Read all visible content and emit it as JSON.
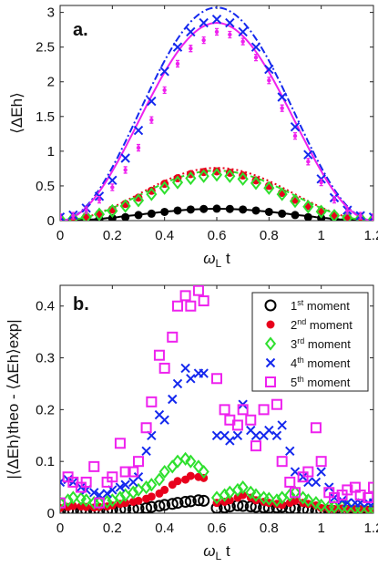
{
  "chart_data": [
    {
      "type": "scatter",
      "panel_label": "a.",
      "xlabel": "ωL t",
      "ylabel": "⟨ΔEh⟩",
      "xlim": [
        0,
        1.2
      ],
      "ylim": [
        0,
        3.1
      ],
      "xticks": [
        "0",
        "0.2",
        "0.4",
        "0.6",
        "0.8",
        "1",
        "1.2"
      ],
      "yticks": [
        "0",
        "0.5",
        "1",
        "1.5",
        "2",
        "2.5",
        "3"
      ],
      "grid": false,
      "colors": {
        "black": "#000000",
        "red": "#e8001c",
        "green": "#2ee02e",
        "blue": "#1428ee",
        "magenta": "#ee22ee"
      },
      "series": [
        {
          "color": "black",
          "marker": "circle-filled",
          "line": "solid",
          "amplitude": 0.17,
          "x": [
            0.0,
            0.05,
            0.1,
            0.15,
            0.2,
            0.25,
            0.3,
            0.35,
            0.4,
            0.45,
            0.5,
            0.55,
            0.6,
            0.65,
            0.7,
            0.75,
            0.8,
            0.85,
            0.9,
            0.95,
            1.0,
            1.05,
            1.1,
            1.15,
            1.2
          ],
          "y": [
            0.0,
            0.004,
            0.01,
            0.02,
            0.035,
            0.05,
            0.08,
            0.1,
            0.125,
            0.145,
            0.16,
            0.168,
            0.172,
            0.168,
            0.16,
            0.145,
            0.125,
            0.1,
            0.08,
            0.05,
            0.035,
            0.02,
            0.01,
            0.004,
            0.0
          ]
        },
        {
          "color": "red",
          "marker": "circle-filled",
          "line": "dotted",
          "amplitude": 0.76,
          "x": [
            0.0,
            0.05,
            0.1,
            0.15,
            0.2,
            0.25,
            0.3,
            0.35,
            0.4,
            0.45,
            0.5,
            0.55,
            0.6,
            0.65,
            0.7,
            0.75,
            0.8,
            0.85,
            0.9,
            0.95,
            1.0,
            1.05,
            1.1,
            1.15,
            1.2
          ],
          "y": [
            0.02,
            0.03,
            0.06,
            0.1,
            0.16,
            0.24,
            0.33,
            0.43,
            0.53,
            0.61,
            0.67,
            0.7,
            0.71,
            0.69,
            0.65,
            0.58,
            0.5,
            0.4,
            0.3,
            0.21,
            0.14,
            0.08,
            0.05,
            0.03,
            0.02
          ]
        },
        {
          "color": "green",
          "marker": "diamond",
          "line": "dashed",
          "amplitude": 0.72,
          "x": [
            0.0,
            0.05,
            0.1,
            0.15,
            0.2,
            0.25,
            0.3,
            0.35,
            0.4,
            0.45,
            0.5,
            0.55,
            0.6,
            0.65,
            0.7,
            0.75,
            0.8,
            0.85,
            0.9,
            0.95,
            1.0,
            1.05,
            1.1,
            1.15,
            1.2
          ],
          "y": [
            0.02,
            0.03,
            0.05,
            0.09,
            0.14,
            0.21,
            0.29,
            0.38,
            0.47,
            0.55,
            0.61,
            0.64,
            0.66,
            0.64,
            0.6,
            0.54,
            0.47,
            0.38,
            0.28,
            0.2,
            0.13,
            0.07,
            0.04,
            0.03,
            0.02
          ]
        },
        {
          "color": "blue",
          "marker": "x",
          "line": "dashdot",
          "amplitude": 3.07,
          "x": [
            0.0,
            0.05,
            0.1,
            0.15,
            0.2,
            0.25,
            0.3,
            0.35,
            0.4,
            0.45,
            0.5,
            0.55,
            0.6,
            0.65,
            0.7,
            0.75,
            0.8,
            0.85,
            0.9,
            0.95,
            1.0,
            1.05,
            1.1,
            1.15,
            1.2
          ],
          "y": [
            0.05,
            0.08,
            0.18,
            0.35,
            0.58,
            0.9,
            1.3,
            1.72,
            2.15,
            2.5,
            2.72,
            2.85,
            2.9,
            2.85,
            2.72,
            2.5,
            2.18,
            1.78,
            1.35,
            0.95,
            0.6,
            0.33,
            0.15,
            0.07,
            0.05
          ]
        },
        {
          "color": "magenta",
          "marker": "errorbar-dot",
          "line": "solid",
          "amplitude": 2.85,
          "x": [
            0.0,
            0.05,
            0.1,
            0.15,
            0.2,
            0.25,
            0.3,
            0.35,
            0.4,
            0.45,
            0.5,
            0.55,
            0.6,
            0.65,
            0.7,
            0.75,
            0.8,
            0.85,
            0.9,
            0.95,
            1.0,
            1.05,
            1.1,
            1.15,
            1.2
          ],
          "y": [
            0.05,
            0.07,
            0.15,
            0.3,
            0.48,
            0.73,
            1.05,
            1.45,
            1.88,
            2.26,
            2.48,
            2.6,
            2.72,
            2.68,
            2.58,
            2.35,
            2.02,
            1.62,
            1.22,
            0.85,
            0.55,
            0.3,
            0.14,
            0.07,
            0.05
          ]
        }
      ]
    },
    {
      "type": "scatter",
      "panel_label": "b.",
      "xlabel": "ωL t",
      "ylabel": "|⟨ΔEh⟩theo - ⟨ΔEh⟩exp|",
      "xlim": [
        0,
        1.2
      ],
      "ylim": [
        0,
        0.44
      ],
      "xticks": [
        "0",
        "0.2",
        "0.4",
        "0.6",
        "0.8",
        "1",
        "1.2"
      ],
      "yticks": [
        "0",
        "0.1",
        "0.2",
        "0.3",
        "0.4"
      ],
      "grid": false,
      "legend_position": "top-right",
      "series": [
        {
          "name": "1st moment",
          "marker": "circle-open",
          "color": "black",
          "x": [
            0.0,
            0.03,
            0.05,
            0.08,
            0.1,
            0.13,
            0.15,
            0.18,
            0.2,
            0.23,
            0.25,
            0.28,
            0.3,
            0.33,
            0.35,
            0.38,
            0.4,
            0.43,
            0.45,
            0.48,
            0.5,
            0.53,
            0.55,
            0.6,
            0.63,
            0.65,
            0.68,
            0.7,
            0.73,
            0.75,
            0.78,
            0.8,
            0.83,
            0.85,
            0.88,
            0.9,
            0.93,
            0.95,
            0.98,
            1.0,
            1.03,
            1.05,
            1.08,
            1.1,
            1.13,
            1.15,
            1.18,
            1.2
          ],
          "y": [
            0.005,
            0.005,
            0.005,
            0.005,
            0.005,
            0.006,
            0.006,
            0.006,
            0.007,
            0.007,
            0.008,
            0.008,
            0.009,
            0.01,
            0.012,
            0.014,
            0.016,
            0.018,
            0.02,
            0.022,
            0.023,
            0.025,
            0.024,
            0.01,
            0.011,
            0.013,
            0.015,
            0.014,
            0.013,
            0.012,
            0.011,
            0.01,
            0.011,
            0.012,
            0.01,
            0.009,
            0.008,
            0.006,
            0.005,
            0.005,
            0.005,
            0.004,
            0.004,
            0.004,
            0.004,
            0.004,
            0.003,
            0.003
          ]
        },
        {
          "name": "2nd moment",
          "marker": "circle-filled",
          "color": "red",
          "x": [
            0.0,
            0.03,
            0.05,
            0.08,
            0.1,
            0.13,
            0.15,
            0.18,
            0.2,
            0.23,
            0.25,
            0.28,
            0.3,
            0.33,
            0.35,
            0.38,
            0.4,
            0.43,
            0.45,
            0.48,
            0.5,
            0.53,
            0.55,
            0.6,
            0.63,
            0.65,
            0.68,
            0.7,
            0.73,
            0.75,
            0.78,
            0.8,
            0.83,
            0.85,
            0.88,
            0.9,
            0.93,
            0.95,
            0.98,
            1.0,
            1.03,
            1.05,
            1.08,
            1.1,
            1.13,
            1.15,
            1.18,
            1.2
          ],
          "y": [
            0.01,
            0.012,
            0.014,
            0.013,
            0.012,
            0.011,
            0.012,
            0.013,
            0.015,
            0.018,
            0.02,
            0.022,
            0.024,
            0.028,
            0.032,
            0.038,
            0.045,
            0.055,
            0.062,
            0.065,
            0.072,
            0.07,
            0.068,
            0.02,
            0.022,
            0.025,
            0.03,
            0.035,
            0.03,
            0.025,
            0.022,
            0.02,
            0.018,
            0.016,
            0.02,
            0.024,
            0.02,
            0.018,
            0.015,
            0.01,
            0.008,
            0.008,
            0.009,
            0.008,
            0.007,
            0.007,
            0.006,
            0.006
          ]
        },
        {
          "name": "3rd moment",
          "marker": "diamond",
          "color": "green",
          "x": [
            0.0,
            0.03,
            0.05,
            0.08,
            0.1,
            0.13,
            0.15,
            0.18,
            0.2,
            0.23,
            0.25,
            0.28,
            0.3,
            0.33,
            0.35,
            0.38,
            0.4,
            0.43,
            0.45,
            0.48,
            0.5,
            0.53,
            0.55,
            0.6,
            0.63,
            0.65,
            0.68,
            0.7,
            0.73,
            0.75,
            0.78,
            0.8,
            0.83,
            0.85,
            0.88,
            0.9,
            0.93,
            0.95,
            0.98,
            1.0,
            1.03,
            1.05,
            1.08,
            1.1,
            1.13,
            1.15,
            1.18,
            1.2
          ],
          "y": [
            0.02,
            0.025,
            0.03,
            0.028,
            0.025,
            0.02,
            0.02,
            0.022,
            0.025,
            0.03,
            0.035,
            0.04,
            0.045,
            0.05,
            0.055,
            0.065,
            0.08,
            0.09,
            0.1,
            0.105,
            0.1,
            0.09,
            0.08,
            0.03,
            0.035,
            0.04,
            0.045,
            0.05,
            0.04,
            0.035,
            0.03,
            0.028,
            0.025,
            0.03,
            0.035,
            0.04,
            0.03,
            0.025,
            0.02,
            0.015,
            0.012,
            0.012,
            0.013,
            0.012,
            0.01,
            0.01,
            0.009,
            0.009
          ]
        },
        {
          "name": "4th moment",
          "marker": "x",
          "color": "blue",
          "x": [
            0.0,
            0.03,
            0.05,
            0.08,
            0.1,
            0.13,
            0.15,
            0.18,
            0.2,
            0.23,
            0.25,
            0.28,
            0.3,
            0.33,
            0.35,
            0.38,
            0.4,
            0.43,
            0.45,
            0.48,
            0.5,
            0.53,
            0.55,
            0.6,
            0.63,
            0.65,
            0.68,
            0.7,
            0.73,
            0.75,
            0.78,
            0.8,
            0.83,
            0.85,
            0.88,
            0.9,
            0.93,
            0.95,
            0.98,
            1.0,
            1.03,
            1.05,
            1.08,
            1.1,
            1.13,
            1.15,
            1.18,
            1.2
          ],
          "y": [
            0.06,
            0.065,
            0.06,
            0.05,
            0.045,
            0.04,
            0.035,
            0.038,
            0.045,
            0.05,
            0.055,
            0.06,
            0.07,
            0.12,
            0.15,
            0.19,
            0.18,
            0.22,
            0.25,
            0.28,
            0.26,
            0.27,
            0.27,
            0.15,
            0.15,
            0.14,
            0.15,
            0.21,
            0.16,
            0.15,
            0.15,
            0.16,
            0.15,
            0.17,
            0.12,
            0.08,
            0.07,
            0.06,
            0.06,
            0.08,
            0.05,
            0.03,
            0.025,
            0.02,
            0.02,
            0.02,
            0.02,
            0.02
          ]
        },
        {
          "name": "5th moment",
          "marker": "square-open",
          "color": "magenta",
          "x": [
            0.0,
            0.03,
            0.05,
            0.08,
            0.1,
            0.13,
            0.15,
            0.18,
            0.2,
            0.23,
            0.25,
            0.28,
            0.3,
            0.33,
            0.35,
            0.38,
            0.4,
            0.43,
            0.45,
            0.48,
            0.5,
            0.53,
            0.55,
            0.6,
            0.63,
            0.65,
            0.68,
            0.7,
            0.73,
            0.75,
            0.78,
            0.8,
            0.83,
            0.85,
            0.88,
            0.9,
            0.93,
            0.95,
            0.98,
            1.0,
            1.03,
            1.05,
            1.08,
            1.1,
            1.13,
            1.15,
            1.18,
            1.2
          ],
          "y": [
            0.02,
            0.07,
            0.06,
            0.05,
            0.06,
            0.09,
            0.02,
            0.06,
            0.07,
            0.135,
            0.08,
            0.08,
            0.1,
            0.165,
            0.215,
            0.305,
            0.28,
            0.34,
            0.4,
            0.42,
            0.4,
            0.43,
            0.41,
            0.26,
            0.2,
            0.18,
            0.17,
            0.2,
            0.18,
            0.13,
            0.2,
            0.25,
            0.21,
            0.1,
            0.06,
            0.04,
            0.07,
            0.08,
            0.165,
            0.1,
            0.04,
            0.03,
            0.035,
            0.045,
            0.05,
            0.035,
            0.03,
            0.05
          ]
        }
      ]
    }
  ]
}
